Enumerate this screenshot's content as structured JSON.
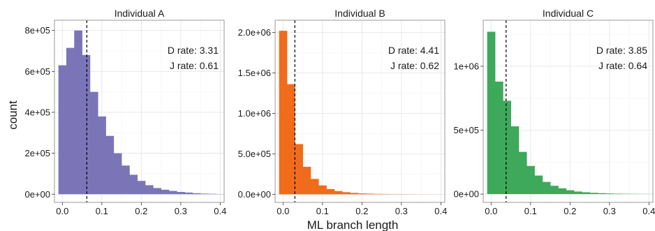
{
  "figure": {
    "ylabel": "count",
    "xlabel": "ML branch length"
  },
  "chart_data": [
    {
      "type": "bar",
      "title": "Individual A",
      "color": "#7b75b8",
      "bin_width": 0.02,
      "x_start": -0.01,
      "values": [
        630000,
        715000,
        800000,
        680000,
        500000,
        380000,
        285000,
        200000,
        140000,
        95000,
        65000,
        44000,
        30000,
        22000,
        16000,
        11000,
        8000,
        5000,
        3000,
        2000,
        1000
      ],
      "xlim": [
        -0.02,
        0.41
      ],
      "ylim": [
        -40000,
        850000
      ],
      "xticks": [
        0.0,
        0.1,
        0.2,
        0.3,
        0.4
      ],
      "xtick_labels": [
        "0.0",
        "0.1",
        "0.2",
        "0.3",
        "0.4"
      ],
      "yticks": [
        0,
        200000,
        400000,
        600000,
        800000
      ],
      "ytick_labels": [
        "0e+00",
        "2e+05",
        "4e+05",
        "6e+05",
        "8e+05"
      ],
      "vline": 0.062,
      "annotations": [
        "D rate: 3.31",
        "J rate: 0.61"
      ]
    },
    {
      "type": "bar",
      "title": "Individual B",
      "color": "#f06c1b",
      "bin_width": 0.02,
      "x_start": -0.01,
      "values": [
        2020000,
        1360000,
        620000,
        340000,
        190000,
        110000,
        65000,
        40000,
        26000,
        17000,
        11000,
        8000,
        5500,
        4000,
        3000,
        2200,
        1600,
        1200,
        900,
        700,
        500
      ],
      "xlim": [
        -0.02,
        0.41
      ],
      "ylim": [
        -100000,
        2150000
      ],
      "xticks": [
        0.0,
        0.1,
        0.2,
        0.3,
        0.4
      ],
      "xtick_labels": [
        "0.0",
        "0.1",
        "0.2",
        "0.3",
        "0.4"
      ],
      "yticks": [
        0,
        500000,
        1000000,
        1500000,
        2000000
      ],
      "ytick_labels": [
        "0.0e+00",
        "5.0e+05",
        "1.0e+06",
        "1.5e+06",
        "2.0e+06"
      ],
      "vline": 0.03,
      "annotations": [
        "D rate: 4.41",
        "J rate: 0.62"
      ]
    },
    {
      "type": "bar",
      "title": "Individual C",
      "color": "#3ea95a",
      "bin_width": 0.02,
      "x_start": -0.01,
      "values": [
        1270000,
        880000,
        730000,
        530000,
        330000,
        220000,
        145000,
        95000,
        65000,
        45000,
        30000,
        20000,
        14000,
        10000,
        7000,
        5000,
        3500,
        2500,
        1800,
        1200,
        800
      ],
      "xlim": [
        -0.02,
        0.41
      ],
      "ylim": [
        -65000,
        1360000
      ],
      "xticks": [
        0.0,
        0.1,
        0.2,
        0.3,
        0.4
      ],
      "xtick_labels": [
        "0.0",
        "0.1",
        "0.2",
        "0.3",
        "0.4"
      ],
      "yticks": [
        0,
        500000,
        1000000
      ],
      "ytick_labels": [
        "0e+00",
        "5e+05",
        "1e+06"
      ],
      "vline": 0.038,
      "annotations": [
        "D rate: 3.85",
        "J rate: 0.64"
      ]
    }
  ]
}
